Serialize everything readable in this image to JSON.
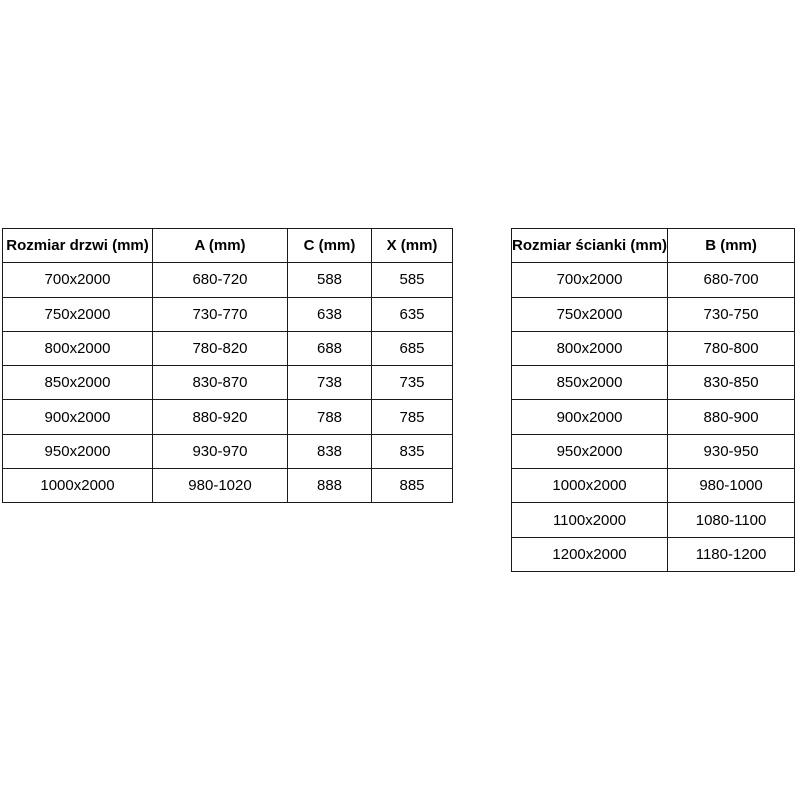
{
  "page": {
    "background_color": "#ffffff",
    "text_color": "#000000",
    "border_color": "#1a1a1a"
  },
  "tables": [
    {
      "name": "door-size-table",
      "headers": [
        "Rozmiar drzwi (mm)",
        "A (mm)",
        "C (mm)",
        "X (mm)"
      ],
      "rows": [
        [
          "700x2000",
          "680-720",
          "588",
          "585"
        ],
        [
          "750x2000",
          "730-770",
          "638",
          "635"
        ],
        [
          "800x2000",
          "780-820",
          "688",
          "685"
        ],
        [
          "850x2000",
          "830-870",
          "738",
          "735"
        ],
        [
          "900x2000",
          "880-920",
          "788",
          "785"
        ],
        [
          "950x2000",
          "930-970",
          "838",
          "835"
        ],
        [
          "1000x2000",
          "980-1020",
          "888",
          "885"
        ]
      ]
    },
    {
      "name": "wall-size-table",
      "headers": [
        "Rozmiar ścianki (mm)",
        "B (mm)"
      ],
      "rows": [
        [
          "700x2000",
          "680-700"
        ],
        [
          "750x2000",
          "730-750"
        ],
        [
          "800x2000",
          "780-800"
        ],
        [
          "850x2000",
          "830-850"
        ],
        [
          "900x2000",
          "880-900"
        ],
        [
          "950x2000",
          "930-950"
        ],
        [
          "1000x2000",
          "980-1000"
        ],
        [
          "1100x2000",
          "1080-1100"
        ],
        [
          "1200x2000",
          "1180-1200"
        ]
      ]
    }
  ]
}
